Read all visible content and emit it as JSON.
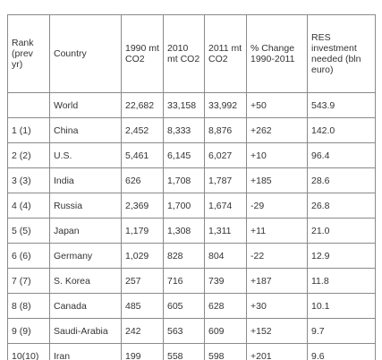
{
  "table": {
    "header": [
      "Rank (prev yr)",
      "Country",
      "1990 mt CO2",
      "2010 mt CO2",
      "2011 mt CO2",
      "% Change 1990-2011",
      "RES investment needed (bln euro)"
    ],
    "rows": [
      [
        null,
        "World",
        "22,682",
        "33,158",
        "33,992",
        "+50",
        "543.9"
      ],
      [
        "1 (1)",
        "China",
        "2,452",
        "8,333",
        "8,876",
        "+262",
        "142.0"
      ],
      [
        "2 (2)",
        "U.S.",
        "5,461",
        "6,145",
        "6,027",
        "+10",
        "96.4"
      ],
      [
        "3 (3)",
        "India",
        "626",
        "1,708",
        "1,787",
        "+185",
        "28.6"
      ],
      [
        "4 (4)",
        "Russia",
        "2,369",
        "1,700",
        "1,674",
        "-29",
        "26.8"
      ],
      [
        "5 (5)",
        "Japan",
        "1,179",
        "1,308",
        "1,311",
        "+11",
        "21.0"
      ],
      [
        "6 (6)",
        "Germany",
        "1,029",
        "828",
        "804",
        "-22",
        "12.9"
      ],
      [
        "7 (7)",
        "S. Korea",
        "257",
        "716",
        "739",
        "+187",
        "11.8"
      ],
      [
        "8 (8)",
        "Canada",
        "485",
        "605",
        "628",
        "+30",
        "10.1"
      ],
      [
        "9 (9)",
        "Saudi-Arabia",
        "242",
        "563",
        "609",
        "+152",
        "9.7"
      ],
      [
        "10(10)",
        "Iran",
        "199",
        "558",
        "598",
        "+201",
        "9.6"
      ]
    ]
  }
}
